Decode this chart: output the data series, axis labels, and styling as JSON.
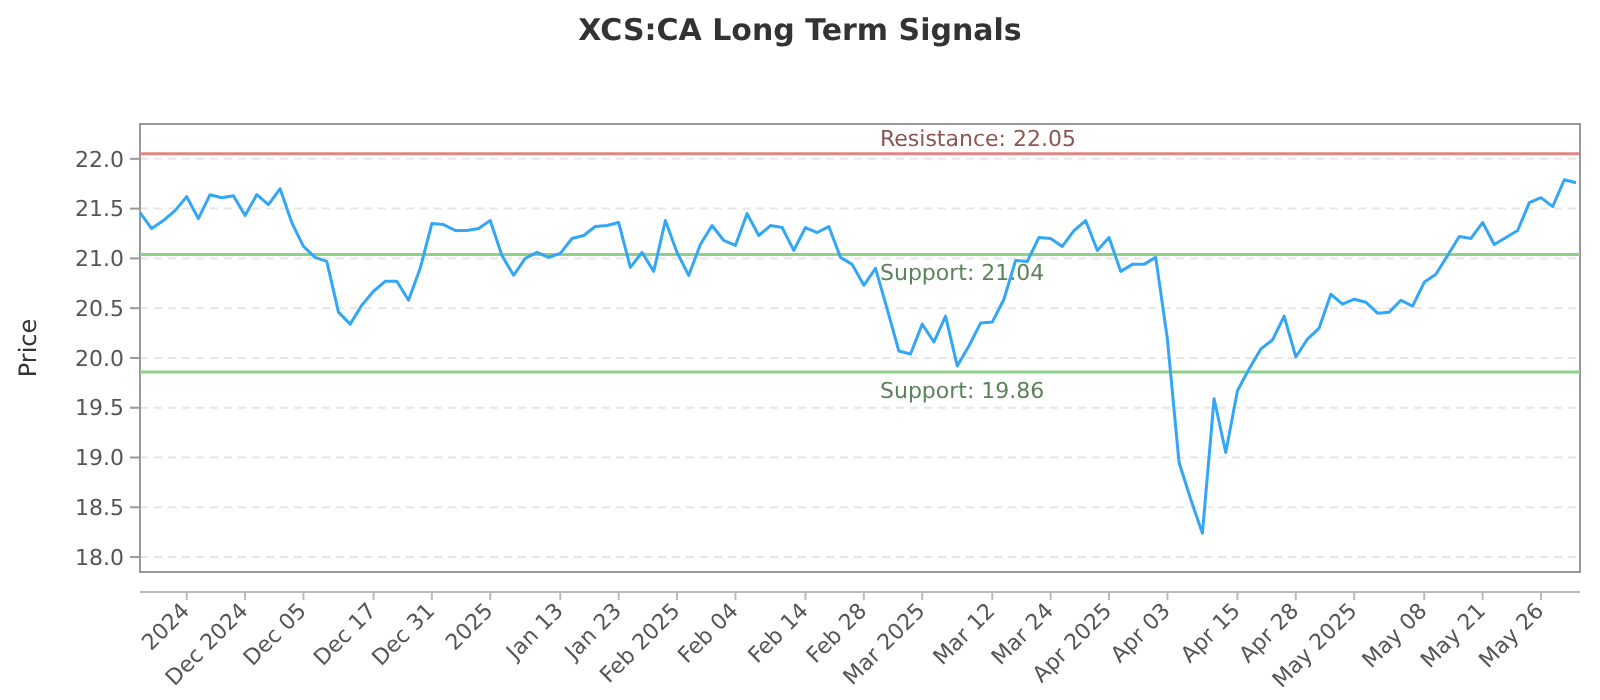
{
  "chart_data": {
    "type": "line",
    "title": "XCS:CA Long Term Signals",
    "ylabel": "Price",
    "categories": [
      null,
      null,
      null,
      null,
      "2024",
      null,
      null,
      null,
      null,
      "Dec 2024",
      null,
      null,
      null,
      null,
      "Dec 05",
      null,
      null,
      null,
      null,
      null,
      "Dec 17",
      null,
      null,
      null,
      null,
      "Dec 31",
      null,
      null,
      null,
      null,
      "2025",
      null,
      null,
      null,
      null,
      null,
      "Jan 13",
      null,
      null,
      null,
      null,
      "Jan 23",
      null,
      null,
      null,
      null,
      "Feb 2025",
      null,
      null,
      null,
      null,
      "Feb 04",
      null,
      null,
      null,
      null,
      null,
      "Feb 14",
      null,
      null,
      null,
      null,
      "Feb 28",
      null,
      null,
      null,
      null,
      "Mar 2025",
      null,
      null,
      null,
      null,
      null,
      "Mar 12",
      null,
      null,
      null,
      null,
      "Mar 24",
      null,
      null,
      null,
      null,
      "Apr 2025",
      null,
      null,
      null,
      null,
      "Apr 03",
      null,
      null,
      null,
      null,
      null,
      "Apr 15",
      null,
      null,
      null,
      null,
      "Apr 28",
      null,
      null,
      null,
      null,
      "May 2025",
      null,
      null,
      null,
      null,
      null,
      "May 08",
      null,
      null,
      null,
      null,
      "May 21",
      null,
      null,
      null,
      null,
      "May 26",
      null,
      null,
      null
    ],
    "series": [
      {
        "color": "#33a6f5",
        "values": [
          21.46,
          21.3,
          21.38,
          21.48,
          21.62,
          21.4,
          21.64,
          21.61,
          21.63,
          21.43,
          21.64,
          21.54,
          21.7,
          21.36,
          21.12,
          21.01,
          20.97,
          20.46,
          20.34,
          20.53,
          20.67,
          20.77,
          20.77,
          20.58,
          20.9,
          21.35,
          21.34,
          21.28,
          21.28,
          21.3,
          21.38,
          21.03,
          20.83,
          21.0,
          21.06,
          21.01,
          21.05,
          21.2,
          21.23,
          21.32,
          21.33,
          21.36,
          20.91,
          21.06,
          20.87,
          21.38,
          21.06,
          20.83,
          21.14,
          21.33,
          21.18,
          21.13,
          21.45,
          21.23,
          21.33,
          21.31,
          21.08,
          21.31,
          21.26,
          21.32,
          21.01,
          20.94,
          20.73,
          20.9,
          20.49,
          20.07,
          20.04,
          20.34,
          20.16,
          20.42,
          19.92,
          20.12,
          20.35,
          20.36,
          20.59,
          20.98,
          20.97,
          21.21,
          21.2,
          21.12,
          21.28,
          21.38,
          21.08,
          21.21,
          20.87,
          20.94,
          20.94,
          21.01,
          20.19,
          18.95,
          18.58,
          18.24,
          19.59,
          19.05,
          19.67,
          19.89,
          20.09,
          20.18,
          20.42,
          20.01,
          20.19,
          20.3,
          20.64,
          20.54,
          20.59,
          20.56,
          20.45,
          20.46,
          20.58,
          20.52,
          20.76,
          20.84,
          21.03,
          21.22,
          21.2,
          21.36,
          21.14,
          21.21,
          21.28,
          21.56,
          21.61,
          21.52,
          21.79,
          21.76
        ]
      }
    ],
    "ylim": [
      17.85,
      22.35
    ],
    "yticks": [
      {
        "value": 18,
        "label": "18.0"
      },
      {
        "value": 18.5,
        "label": "18.5"
      },
      {
        "value": 19,
        "label": "19.0"
      },
      {
        "value": 19.5,
        "label": "19.5"
      },
      {
        "value": 20,
        "label": "20.0"
      },
      {
        "value": 20.5,
        "label": "20.5"
      },
      {
        "value": 21,
        "label": "21.0"
      },
      {
        "value": 21.5,
        "label": "21.5"
      },
      {
        "value": 22,
        "label": "22.0"
      }
    ],
    "grid": "y",
    "ref_lines": [
      {
        "axis": "y",
        "value": 22.05,
        "label": "Resistance: 22.05",
        "color": "#e08585"
      },
      {
        "axis": "y",
        "value": 21.04,
        "label": "Support: 21.04",
        "color": "#8fd18a"
      },
      {
        "axis": "y",
        "value": 19.86,
        "label": "Support: 19.86",
        "color": "#8fd18a"
      }
    ]
  }
}
